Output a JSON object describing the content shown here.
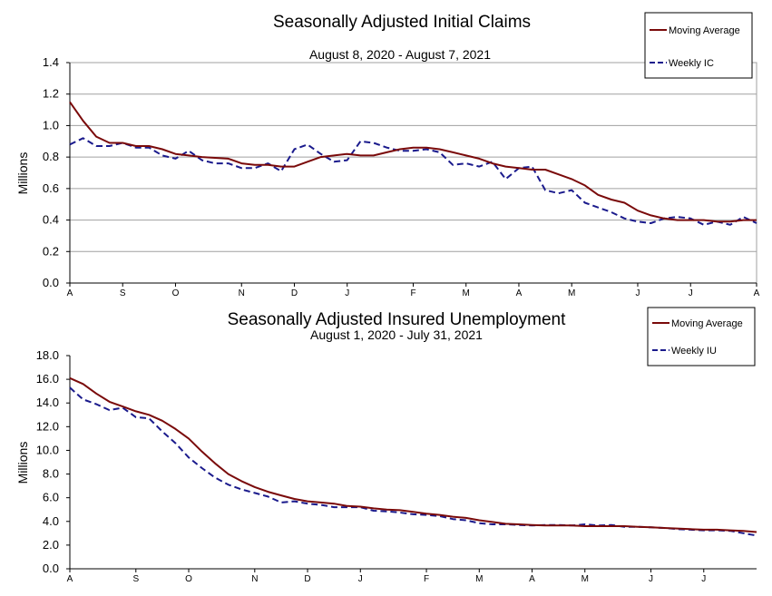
{
  "colors": {
    "moving_average": "#7a0a0a",
    "weekly": "#1a1a8c",
    "grid": "#a0a0a0",
    "axis": "#000000"
  },
  "chart_data": [
    {
      "type": "line",
      "title": "Seasonally Adjusted Initial Claims",
      "subtitle": "August 8, 2020 - August 7, 2021",
      "ylabel": "Millions",
      "ylim": [
        0,
        1.4
      ],
      "yticks": [
        "0.0",
        "0.2",
        "0.4",
        "0.6",
        "0.8",
        "1.0",
        "1.2",
        "1.4"
      ],
      "xtick_labels": [
        "A",
        "S",
        "O",
        "N",
        "D",
        "J",
        "F",
        "M",
        "A",
        "M",
        "J",
        "J",
        "A"
      ],
      "xtick_weeks": [
        0,
        4,
        8,
        13,
        17,
        21,
        26,
        30,
        34,
        38,
        43,
        47,
        52
      ],
      "grid": true,
      "legend_position": "top-right",
      "series": [
        {
          "name": "Moving Average",
          "style": "solid",
          "values": [
            1.15,
            1.03,
            0.93,
            0.89,
            0.89,
            0.87,
            0.87,
            0.85,
            0.82,
            0.81,
            0.8,
            0.795,
            0.79,
            0.76,
            0.75,
            0.75,
            0.74,
            0.74,
            0.77,
            0.8,
            0.81,
            0.82,
            0.81,
            0.81,
            0.83,
            0.85,
            0.86,
            0.86,
            0.85,
            0.83,
            0.81,
            0.79,
            0.76,
            0.74,
            0.73,
            0.72,
            0.72,
            0.69,
            0.66,
            0.62,
            0.56,
            0.53,
            0.51,
            0.46,
            0.43,
            0.41,
            0.4,
            0.4,
            0.4,
            0.39,
            0.39,
            0.4,
            0.4
          ]
        },
        {
          "name": "Weekly IC",
          "style": "dashed",
          "values": [
            0.88,
            0.92,
            0.87,
            0.87,
            0.89,
            0.86,
            0.86,
            0.81,
            0.79,
            0.84,
            0.78,
            0.76,
            0.76,
            0.73,
            0.73,
            0.76,
            0.71,
            0.85,
            0.88,
            0.82,
            0.77,
            0.78,
            0.9,
            0.89,
            0.86,
            0.84,
            0.84,
            0.85,
            0.83,
            0.75,
            0.76,
            0.74,
            0.77,
            0.66,
            0.73,
            0.74,
            0.59,
            0.57,
            0.59,
            0.51,
            0.48,
            0.45,
            0.41,
            0.39,
            0.38,
            0.41,
            0.42,
            0.41,
            0.37,
            0.39,
            0.37,
            0.42,
            0.38
          ]
        }
      ]
    },
    {
      "type": "line",
      "title": "Seasonally Adjusted Insured Unemployment",
      "subtitle": "August 1, 2020 - July 31, 2021",
      "ylabel": "Millions",
      "ylim": [
        0,
        18
      ],
      "yticks": [
        "0.0",
        "2.0",
        "4.0",
        "6.0",
        "8.0",
        "10.0",
        "12.0",
        "14.0",
        "16.0",
        "18.0"
      ],
      "xtick_labels": [
        "A",
        "S",
        "O",
        "N",
        "D",
        "J",
        "F",
        "M",
        "A",
        "M",
        "J",
        "J"
      ],
      "xtick_weeks": [
        0,
        5,
        9,
        14,
        18,
        22,
        27,
        31,
        35,
        39,
        44,
        48
      ],
      "grid": false,
      "legend_position": "top-right",
      "series": [
        {
          "name": "Moving Average",
          "style": "solid",
          "values": [
            16.1,
            15.6,
            14.8,
            14.1,
            13.7,
            13.3,
            13.0,
            12.5,
            11.8,
            11.0,
            9.9,
            8.9,
            8.0,
            7.4,
            6.9,
            6.5,
            6.2,
            5.9,
            5.7,
            5.6,
            5.5,
            5.3,
            5.25,
            5.1,
            5.0,
            4.95,
            4.8,
            4.65,
            4.55,
            4.4,
            4.3,
            4.1,
            3.95,
            3.8,
            3.75,
            3.7,
            3.65,
            3.65,
            3.65,
            3.6,
            3.6,
            3.6,
            3.6,
            3.55,
            3.5,
            3.45,
            3.4,
            3.35,
            3.3,
            3.3,
            3.25,
            3.2,
            3.1
          ]
        },
        {
          "name": "Weekly IU",
          "style": "dashed",
          "values": [
            15.3,
            14.3,
            13.9,
            13.4,
            13.6,
            12.8,
            12.7,
            11.6,
            10.6,
            9.4,
            8.5,
            7.7,
            7.1,
            6.7,
            6.4,
            6.1,
            5.6,
            5.7,
            5.5,
            5.4,
            5.2,
            5.2,
            5.2,
            4.9,
            4.85,
            4.75,
            4.6,
            4.55,
            4.45,
            4.2,
            4.1,
            3.85,
            3.75,
            3.75,
            3.7,
            3.65,
            3.7,
            3.7,
            3.65,
            3.75,
            3.65,
            3.7,
            3.55,
            3.55,
            3.5,
            3.45,
            3.35,
            3.3,
            3.25,
            3.25,
            3.2,
            3.0,
            2.8
          ]
        }
      ]
    }
  ]
}
